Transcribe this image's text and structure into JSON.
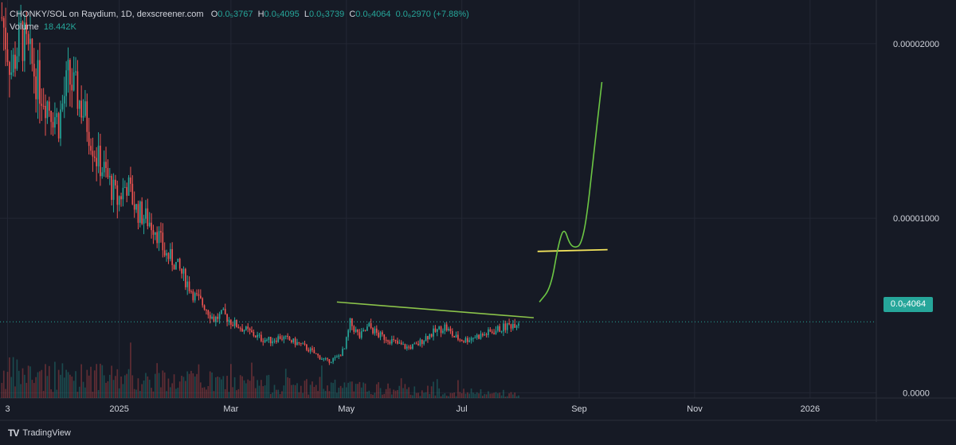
{
  "legend": {
    "symbol": "CHONKY/SOL on Raydium, 1D, dexscreener.com",
    "open_label": "O",
    "open_value": "0.0₅3767",
    "high_label": "H",
    "high_value": "0.0₅4095",
    "low_label": "L",
    "low_value": "0.0₅3739",
    "close_label": "C",
    "close_value": "0.0₅4064",
    "change": "0.0₆2970 (+7.88%)",
    "volume_label": "Volume",
    "volume_value": "18.442K"
  },
  "last_price_badge": "0.0₅4064",
  "branding": "TradingView",
  "colors": {
    "background": "#161a25",
    "up": "#26a69a",
    "down": "#ef5350",
    "resistance_line": "#8bc34a",
    "drawn_projection": "#6cc644",
    "support_line": "#f2e35c"
  },
  "chart_data": {
    "type": "candlestick",
    "title": "CHONKY/SOL on Raydium, 1D, dexscreener.com",
    "y_tick_labels": [
      "0.00002000",
      "0.00001000",
      "0.0000"
    ],
    "y_ticks": [
      2e-05,
      1e-05,
      0.0
    ],
    "x_tick_labels": [
      "3",
      "2025",
      "Mar",
      "May",
      "Jul",
      "Sep",
      "Nov",
      "2026"
    ],
    "x_ticks": [
      "2024-11-03",
      "2025-01-01",
      "2025-03-01",
      "2025-05-01",
      "2025-07-01",
      "2025-09-01",
      "2025-11-01",
      "2026-01-01"
    ],
    "x_range": [
      "2024-10-30",
      "2026-02-05"
    ],
    "y_range": [
      -3e-07,
      2.25e-05
    ],
    "grid": true,
    "last_price": 4.064e-06,
    "price_path": [
      [
        "2024-10-31",
        2.15e-05
      ],
      [
        "2024-11-05",
        1.85e-05
      ],
      [
        "2024-11-10",
        2.05e-05
      ],
      [
        "2024-11-15",
        1.9e-05
      ],
      [
        "2024-11-20",
        1.75e-05
      ],
      [
        "2024-11-25",
        1.65e-05
      ],
      [
        "2024-11-30",
        1.55e-05
      ],
      [
        "2024-12-05",
        1.8e-05
      ],
      [
        "2024-12-10",
        1.7e-05
      ],
      [
        "2024-12-15",
        1.55e-05
      ],
      [
        "2024-12-20",
        1.35e-05
      ],
      [
        "2024-12-25",
        1.25e-05
      ],
      [
        "2024-12-31",
        1.1e-05
      ],
      [
        "2025-01-05",
        1.2e-05
      ],
      [
        "2025-01-10",
        1.05e-05
      ],
      [
        "2025-01-15",
        1e-05
      ],
      [
        "2025-01-20",
        9.5e-06
      ],
      [
        "2025-01-25",
        8e-06
      ],
      [
        "2025-01-30",
        7.5e-06
      ],
      [
        "2025-02-05",
        6.5e-06
      ],
      [
        "2025-02-10",
        5.5e-06
      ],
      [
        "2025-02-15",
        5e-06
      ],
      [
        "2025-02-20",
        4.2e-06
      ],
      [
        "2025-02-25",
        4.5e-06
      ],
      [
        "2025-03-02",
        4e-06
      ],
      [
        "2025-03-07",
        3.7e-06
      ],
      [
        "2025-03-12",
        3.4e-06
      ],
      [
        "2025-03-17",
        3.1e-06
      ],
      [
        "2025-03-22",
        3e-06
      ],
      [
        "2025-03-27",
        3.2e-06
      ],
      [
        "2025-04-01",
        3e-06
      ],
      [
        "2025-04-06",
        2.8e-06
      ],
      [
        "2025-04-11",
        2.5e-06
      ],
      [
        "2025-04-16",
        2.1e-06
      ],
      [
        "2025-04-21",
        1.8e-06
      ],
      [
        "2025-04-26",
        2e-06
      ],
      [
        "2025-04-30",
        2.5e-06
      ],
      [
        "2025-05-03",
        4e-06
      ],
      [
        "2025-05-08",
        3.2e-06
      ],
      [
        "2025-05-13",
        3.8e-06
      ],
      [
        "2025-05-18",
        3.3e-06
      ],
      [
        "2025-05-23",
        3.1e-06
      ],
      [
        "2025-05-28",
        2.8e-06
      ],
      [
        "2025-06-02",
        2.6e-06
      ],
      [
        "2025-06-07",
        2.7e-06
      ],
      [
        "2025-06-12",
        3.2e-06
      ],
      [
        "2025-06-17",
        3.5e-06
      ],
      [
        "2025-06-22",
        3.8e-06
      ],
      [
        "2025-06-27",
        3.2e-06
      ],
      [
        "2025-07-02",
        3e-06
      ],
      [
        "2025-07-07",
        3.2e-06
      ],
      [
        "2025-07-12",
        3.3e-06
      ],
      [
        "2025-07-17",
        3.5e-06
      ],
      [
        "2025-07-22",
        3.7e-06
      ],
      [
        "2025-07-27",
        3.9e-06
      ],
      [
        "2025-07-31",
        4.1e-06
      ]
    ],
    "resistance_line": {
      "from": [
        "2025-04-26",
        5.2e-06
      ],
      "to": [
        "2025-08-08",
        4.3e-06
      ]
    },
    "support_line": {
      "from": [
        "2025-08-10",
        8.1e-06
      ],
      "to": [
        "2025-09-16",
        8.2e-06
      ]
    },
    "projection_path": [
      [
        "2025-08-11",
        5.2e-06
      ],
      [
        "2025-08-17",
        6e-06
      ],
      [
        "2025-08-21",
        8.5e-06
      ],
      [
        "2025-08-24",
        9.5e-06
      ],
      [
        "2025-08-27",
        8.5e-06
      ],
      [
        "2025-08-30",
        8.3e-06
      ],
      [
        "2025-09-02",
        8.5e-06
      ],
      [
        "2025-09-05",
        1e-05
      ],
      [
        "2025-09-09",
        1.4e-05
      ],
      [
        "2025-09-13",
        1.78e-05
      ]
    ]
  }
}
